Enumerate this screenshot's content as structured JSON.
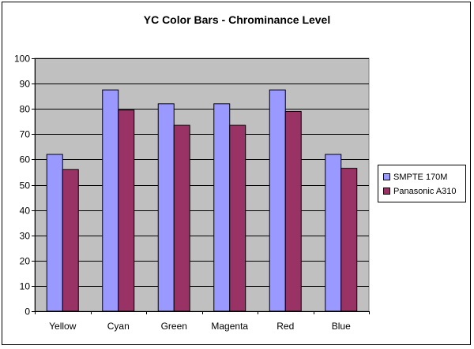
{
  "chart_data": {
    "type": "bar",
    "title": "YC Color Bars - Chrominance Level",
    "xlabel": "",
    "ylabel": "",
    "categories": [
      "Yellow",
      "Cyan",
      "Green",
      "Magenta",
      "Red",
      "Blue"
    ],
    "series": [
      {
        "name": "SMPTE 170M",
        "values": [
          62,
          87.5,
          82,
          82,
          87.5,
          62
        ],
        "color": "#9999ff"
      },
      {
        "name": "Panasonic A310",
        "values": [
          56,
          79.5,
          73.5,
          73.5,
          79,
          56.5
        ],
        "color": "#993366"
      }
    ],
    "ylim": [
      0,
      100
    ],
    "yticks": [
      "0",
      "10",
      "20",
      "30",
      "40",
      "50",
      "60",
      "70",
      "80",
      "90",
      "100"
    ],
    "grid": true,
    "plot_background": "#c0c0c0",
    "legend_position": "right"
  }
}
